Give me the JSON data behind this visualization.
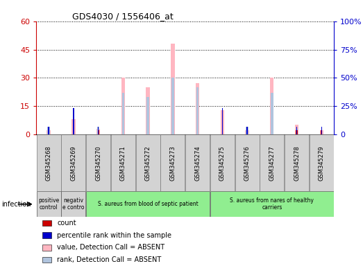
{
  "title": "GDS4030 / 1556406_at",
  "samples": [
    "GSM345268",
    "GSM345269",
    "GSM345270",
    "GSM345271",
    "GSM345272",
    "GSM345273",
    "GSM345274",
    "GSM345275",
    "GSM345276",
    "GSM345277",
    "GSM345278",
    "GSM345279"
  ],
  "count_values": [
    2,
    8,
    2,
    0,
    0,
    0,
    0,
    0,
    2,
    0,
    2,
    2
  ],
  "percentile_values": [
    4,
    14,
    4,
    0,
    0,
    0,
    0,
    14,
    4,
    0,
    4,
    4
  ],
  "absent_value_values": [
    2,
    8,
    3,
    30,
    25,
    48,
    27,
    13,
    2,
    30,
    5,
    2
  ],
  "absent_rank_values": [
    4,
    0,
    4,
    22,
    20,
    30,
    25,
    0,
    4,
    22,
    3,
    0
  ],
  "ylim_left": [
    0,
    60
  ],
  "ylim_right": [
    0,
    100
  ],
  "yticks_left": [
    0,
    15,
    30,
    45,
    60
  ],
  "yticks_right": [
    0,
    25,
    50,
    75,
    100
  ],
  "ytick_labels_left": [
    "0",
    "15",
    "30",
    "45",
    "60"
  ],
  "ytick_labels_right": [
    "0",
    "25%",
    "50%",
    "75%",
    "100%"
  ],
  "groups": [
    {
      "label": "positive\ncontrol",
      "color": "#d3d3d3",
      "start": 0,
      "end": 1
    },
    {
      "label": "negativ\ne contro",
      "color": "#d3d3d3",
      "start": 1,
      "end": 2
    },
    {
      "label": "S. aureus from blood of septic patient",
      "color": "#90ee90",
      "start": 2,
      "end": 7
    },
    {
      "label": "S. aureus from nares of healthy\ncarriers",
      "color": "#90ee90",
      "start": 7,
      "end": 12
    }
  ],
  "infection_label": "infection",
  "legend_items": [
    {
      "label": "count",
      "color": "#cc0000"
    },
    {
      "label": "percentile rank within the sample",
      "color": "#0000cc"
    },
    {
      "label": "value, Detection Call = ABSENT",
      "color": "#ffb6c1"
    },
    {
      "label": "rank, Detection Call = ABSENT",
      "color": "#b0c4de"
    }
  ],
  "count_color": "#cc0000",
  "percentile_color": "#0000cc",
  "absent_value_color": "#ffb6c1",
  "absent_rank_color": "#b0c4de",
  "bg_color": "#ffffff",
  "left_color": "#cc0000",
  "right_color": "#0000cc"
}
